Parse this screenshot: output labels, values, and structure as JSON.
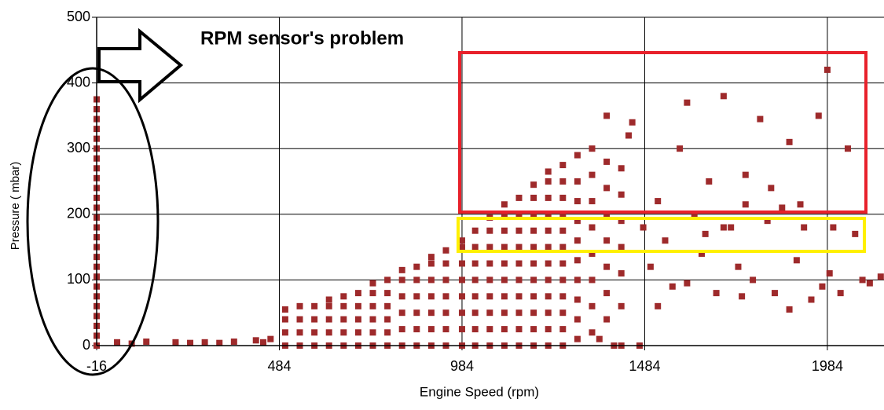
{
  "chart_data": {
    "type": "scatter",
    "annotation": "RPM sensor's problem",
    "x_label": "Engine Speed (rpm)",
    "y_label": "Pressure ( mbar)",
    "color": "#9e2a2b",
    "grid": true,
    "xlim": [
      -16,
      2139
    ],
    "ylim": [
      0,
      500
    ],
    "xticks": [
      -16,
      484,
      984,
      1484,
      1984
    ],
    "yticks": [
      0,
      100,
      200,
      300,
      400,
      500
    ],
    "x": [
      -16,
      -16,
      -16,
      -16,
      -16,
      -16,
      -16,
      -16,
      -16,
      -16,
      -16,
      -16,
      -16,
      -16,
      -16,
      -16,
      -16,
      -16,
      -16,
      -16,
      -16,
      -16,
      -16,
      -16,
      -16,
      -16,
      40,
      80,
      120,
      200,
      240,
      280,
      320,
      360,
      420,
      440,
      460,
      500,
      500,
      500,
      500,
      540,
      540,
      540,
      540,
      580,
      580,
      580,
      580,
      620,
      620,
      620,
      620,
      620,
      660,
      660,
      660,
      660,
      660,
      700,
      700,
      700,
      700,
      700,
      740,
      740,
      740,
      740,
      740,
      740,
      780,
      780,
      780,
      780,
      780,
      780,
      820,
      820,
      820,
      820,
      820,
      820,
      860,
      860,
      860,
      860,
      860,
      860,
      900,
      900,
      900,
      900,
      900,
      900,
      900,
      940,
      940,
      940,
      940,
      940,
      940,
      940,
      984,
      984,
      984,
      984,
      984,
      984,
      984,
      984,
      1020,
      1020,
      1020,
      1020,
      1020,
      1020,
      1020,
      1020,
      1060,
      1060,
      1060,
      1060,
      1060,
      1060,
      1060,
      1060,
      1060,
      1100,
      1100,
      1100,
      1100,
      1100,
      1100,
      1100,
      1100,
      1100,
      1100,
      1140,
      1140,
      1140,
      1140,
      1140,
      1140,
      1140,
      1140,
      1140,
      1140,
      1180,
      1180,
      1180,
      1180,
      1180,
      1180,
      1180,
      1180,
      1180,
      1180,
      1180,
      1220,
      1220,
      1220,
      1220,
      1220,
      1220,
      1220,
      1220,
      1220,
      1220,
      1220,
      1220,
      1260,
      1260,
      1260,
      1260,
      1260,
      1260,
      1260,
      1260,
      1260,
      1260,
      1260,
      1260,
      1300,
      1300,
      1300,
      1300,
      1300,
      1300,
      1300,
      1300,
      1300,
      1300,
      1340,
      1340,
      1340,
      1340,
      1340,
      1340,
      1340,
      1340,
      1380,
      1380,
      1380,
      1380,
      1380,
      1380,
      1380,
      1380,
      1420,
      1420,
      1420,
      1420,
      1420,
      1420,
      1420,
      1450,
      1440,
      1480,
      1500,
      1520,
      1540,
      1560,
      1580,
      1600,
      1620,
      1640,
      1660,
      1680,
      1700,
      1720,
      1740,
      1760,
      1780,
      1800,
      1820,
      1840,
      1860,
      1880,
      1900,
      1920,
      1940,
      1960,
      1984,
      2000,
      2020,
      2040,
      2060,
      2080,
      2100,
      2130,
      1470,
      1400,
      1360,
      1880,
      1700,
      1750,
      1830,
      1910,
      1760,
      1650,
      1520,
      1600,
      1990,
      1970
    ],
    "values": [
      0,
      15,
      30,
      45,
      60,
      75,
      90,
      105,
      120,
      135,
      150,
      165,
      180,
      195,
      210,
      225,
      240,
      255,
      270,
      285,
      300,
      315,
      330,
      345,
      360,
      375,
      5,
      3,
      6,
      5,
      4,
      5,
      4,
      6,
      8,
      5,
      10,
      0,
      20,
      40,
      55,
      0,
      20,
      40,
      60,
      0,
      20,
      40,
      60,
      0,
      20,
      40,
      60,
      70,
      0,
      20,
      40,
      60,
      75,
      0,
      20,
      40,
      60,
      80,
      0,
      20,
      40,
      60,
      80,
      95,
      0,
      20,
      40,
      60,
      80,
      100,
      0,
      25,
      50,
      75,
      100,
      115,
      0,
      25,
      50,
      75,
      100,
      120,
      0,
      25,
      50,
      75,
      100,
      125,
      135,
      0,
      25,
      50,
      75,
      100,
      125,
      145,
      0,
      25,
      50,
      75,
      100,
      125,
      150,
      160,
      0,
      25,
      50,
      75,
      100,
      125,
      150,
      175,
      0,
      25,
      50,
      75,
      100,
      125,
      150,
      175,
      195,
      0,
      25,
      50,
      75,
      100,
      125,
      150,
      175,
      200,
      215,
      0,
      25,
      50,
      75,
      100,
      125,
      150,
      175,
      200,
      225,
      0,
      25,
      50,
      75,
      100,
      125,
      150,
      175,
      200,
      225,
      245,
      0,
      25,
      50,
      75,
      100,
      125,
      150,
      175,
      200,
      225,
      250,
      265,
      0,
      25,
      50,
      75,
      100,
      125,
      150,
      175,
      200,
      225,
      250,
      275,
      10,
      40,
      70,
      100,
      130,
      160,
      190,
      220,
      250,
      290,
      20,
      60,
      100,
      140,
      180,
      220,
      260,
      300,
      40,
      80,
      120,
      160,
      200,
      240,
      280,
      350,
      0,
      60,
      110,
      150,
      190,
      230,
      270,
      340,
      320,
      180,
      120,
      220,
      160,
      90,
      300,
      370,
      200,
      140,
      250,
      80,
      380,
      180,
      120,
      260,
      100,
      345,
      190,
      80,
      210,
      310,
      130,
      180,
      70,
      350,
      420,
      180,
      80,
      300,
      170,
      100,
      95,
      105,
      0,
      0,
      10,
      55,
      180,
      75,
      240,
      215,
      215,
      170,
      60,
      95,
      110,
      90
    ]
  }
}
